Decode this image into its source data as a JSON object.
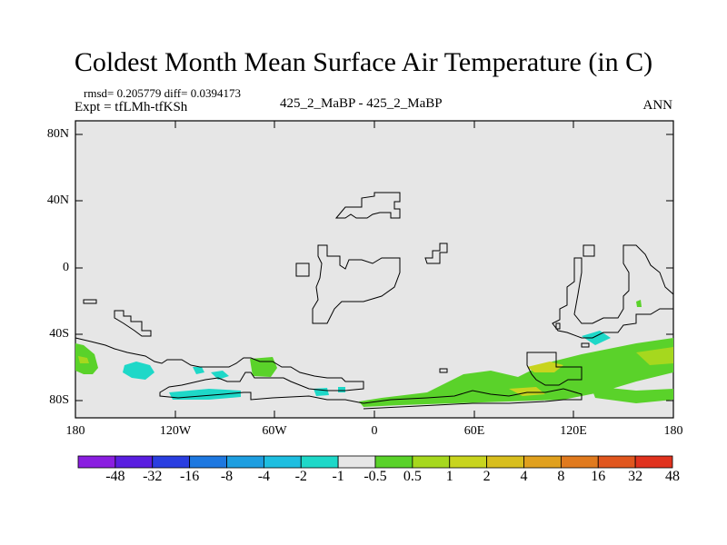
{
  "title": "Coldest Month Mean Surface Air Temperature (in C)",
  "stats": "rmsd= 0.205779 diff= 0.0394173",
  "expt": "Expt = tfLMh-tfKSh",
  "case": "425_2_MaBP - 425_2_MaBP",
  "season": "ANN",
  "y_ticks": [
    "80N",
    "40N",
    "0",
    "40S",
    "80S"
  ],
  "x_ticks": [
    "180",
    "120W",
    "60W",
    "0",
    "60E",
    "120E",
    "180"
  ],
  "colorbar": {
    "colors": [
      "#8a1ee0",
      "#5a1ee0",
      "#2a3ee0",
      "#1e78e0",
      "#1e9ee0",
      "#1ebee0",
      "#1ed8c8",
      "#e6e6e6",
      "#5ad22a",
      "#a6d81e",
      "#c8d41e",
      "#d8be1e",
      "#e0a01e",
      "#e07a1e",
      "#e0561e",
      "#e0321e"
    ],
    "labels": [
      "-48",
      "-32",
      "-16",
      "-8",
      "-4",
      "-2",
      "-1",
      "-0.5",
      "0.5",
      "1",
      "2",
      "4",
      "8",
      "16",
      "32",
      "48"
    ]
  }
}
